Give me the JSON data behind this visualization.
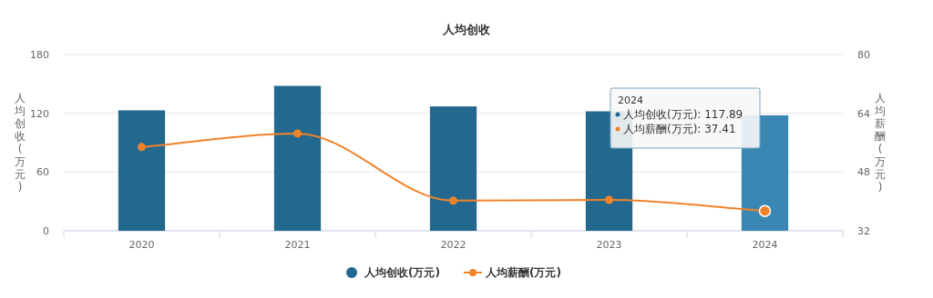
{
  "chart_data": {
    "type": "bar",
    "title": "人均创收",
    "categories": [
      "2020",
      "2021",
      "2022",
      "2023",
      "2024"
    ],
    "series": [
      {
        "name": "人均创收(万元)",
        "color": "#23698f",
        "colors": [
          "#23698f",
          "#23698f",
          "#23698f",
          "#23698f",
          "#3a87b3"
        ],
        "values": [
          123,
          148,
          127,
          122,
          117.89
        ]
      },
      {
        "name": "人均薪酬(万元)",
        "type": "line",
        "color": "#f0832a",
        "axis": "y2",
        "values": [
          54.8,
          58.5,
          40.2,
          40.4,
          37.41
        ]
      }
    ],
    "ylabel": "人均创收(万元)",
    "y2label": "人均薪酬(万元)",
    "ylim": [
      0,
      180
    ],
    "yticks": [
      0,
      60,
      120,
      180
    ],
    "y2lim": [
      32,
      80
    ],
    "y2ticks": [
      32,
      48,
      64,
      80
    ],
    "grid": "y",
    "legend": "bottom",
    "marker": "circle",
    "annotations": [
      "2024",
      "人均创收(万元): 117.89",
      "人均薪酬(万元): 37.41"
    ]
  }
}
